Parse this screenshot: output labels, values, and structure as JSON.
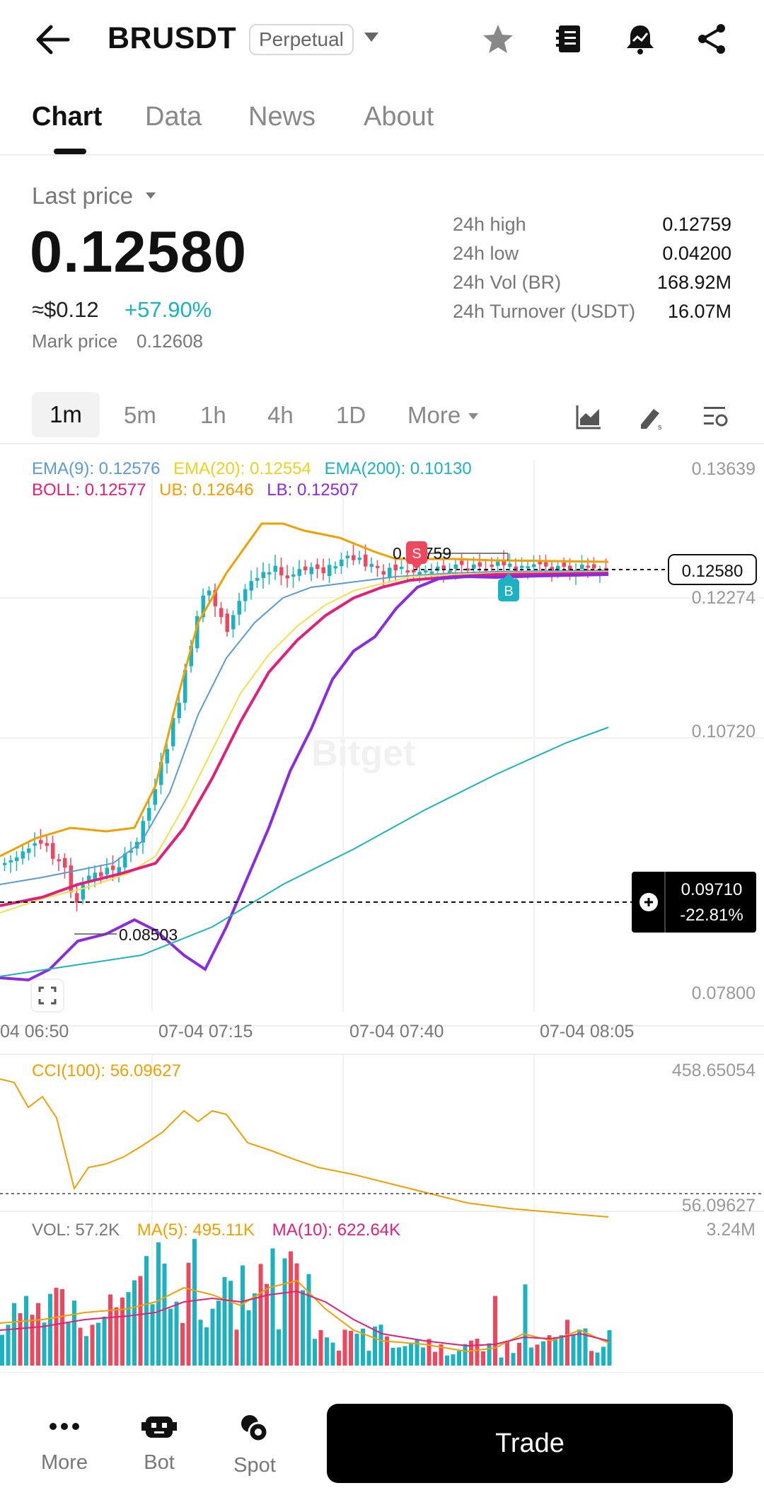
{
  "header": {
    "symbol": "BRUSDT",
    "contract_type": "Perpetual",
    "icons": [
      "back-arrow-icon",
      "dropdown-caret-icon",
      "star-icon",
      "notebook-icon",
      "price-alert-icon",
      "share-icon"
    ]
  },
  "tabs": [
    {
      "label": "Chart",
      "active": true
    },
    {
      "label": "Data",
      "active": false
    },
    {
      "label": "News",
      "active": false
    },
    {
      "label": "About",
      "active": false
    }
  ],
  "price": {
    "last_price_label": "Last price",
    "last_price": "0.12580",
    "usd_value": "≈$0.12",
    "change_pct": "+57.90%",
    "mark_price_label": "Mark price",
    "mark_price": "0.12608"
  },
  "stats": [
    {
      "label": "24h high",
      "value": "0.12759"
    },
    {
      "label": "24h low",
      "value": "0.04200"
    },
    {
      "label": "24h Vol (BR)",
      "value": "168.92M"
    },
    {
      "label": "24h Turnover (USDT)",
      "value": "16.07M"
    }
  ],
  "intervals": {
    "items": [
      "1m",
      "5m",
      "1h",
      "4h",
      "1D"
    ],
    "selected": "1m",
    "more_label": "More"
  },
  "chart": {
    "ema_legend": [
      {
        "label": "EMA(9): 0.12576",
        "color": "#5b9bd5"
      },
      {
        "label": "EMA(20): 0.12554",
        "color": "#f5e04a"
      },
      {
        "label": "EMA(200): 0.10130",
        "color": "#1bb3c2"
      }
    ],
    "boll_legend": [
      {
        "label": "BOLL: 0.12577",
        "color": "#e0207a"
      },
      {
        "label": "UB: 0.12646",
        "color": "#f0a000"
      },
      {
        "label": "LB: 0.12507",
        "color": "#8a2be2"
      }
    ],
    "price_axis": [
      "0.13639",
      "0.12274",
      "0.10720",
      "0.07800"
    ],
    "time_axis": [
      "04 06:50",
      "07-04 07:15",
      "07-04 07:40",
      "07-04 08:05"
    ],
    "current_price_tag": "0.12580",
    "high_marker": "0.12759",
    "low_marker": "0.08503",
    "sell_marker": "S",
    "buy_marker": "B",
    "crosshair_price": "0.09710",
    "crosshair_pct": "-22.81%",
    "watermark": "Bitget",
    "colors": {
      "up": "#1bb3c2",
      "down": "#f0475e"
    }
  },
  "cci": {
    "label": "CCI(100): 56.09627",
    "axis_top": "458.65054",
    "axis_current": "56.09627"
  },
  "volume": {
    "vol_label": "VOL: 57.2K",
    "ma5_label": "MA(5): 495.11K",
    "ma10_label": "MA(10): 622.64K",
    "axis_top": "3.24M"
  },
  "bottom_nav": {
    "items": [
      {
        "label": "More",
        "icon": "more-dots-icon"
      },
      {
        "label": "Bot",
        "icon": "bot-icon"
      },
      {
        "label": "Spot",
        "icon": "spot-icon"
      }
    ],
    "trade_label": "Trade"
  }
}
